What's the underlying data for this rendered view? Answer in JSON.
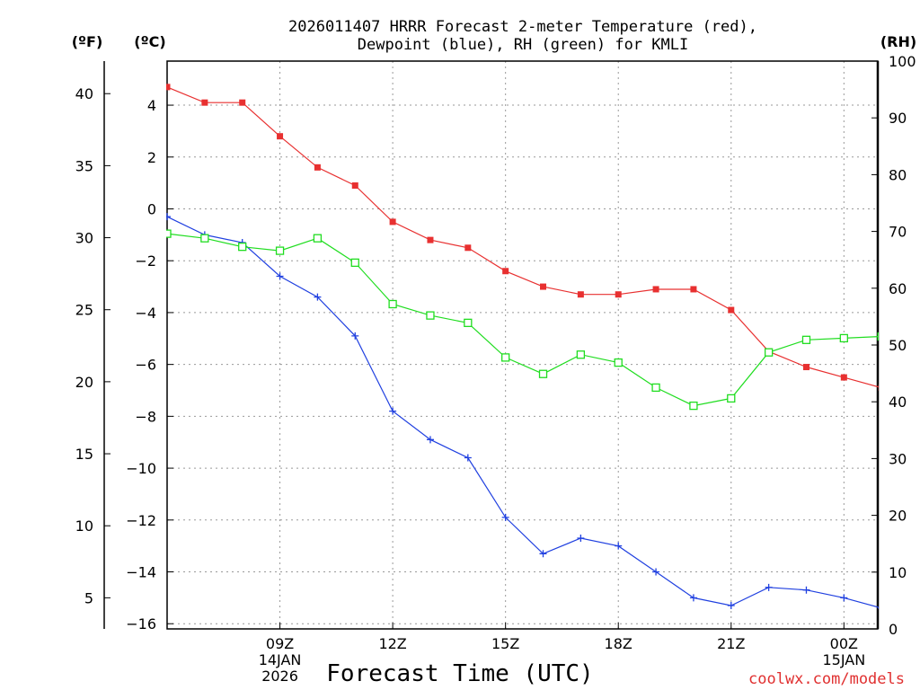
{
  "chart_data": {
    "type": "line",
    "title_lines": [
      "2026011407 HRRR Forecast 2-meter Temperature (red),",
      "Dewpoint (blue), RH (green) for KMLI"
    ],
    "xlabel": "Forecast Time (UTC)",
    "credit": "coolwx.com/models",
    "units": {
      "fahrenheit": "(ºF)",
      "celsius": "(ºC)",
      "rh": "(RH)"
    },
    "x_hours": [
      6,
      7,
      8,
      9,
      10,
      11,
      12,
      13,
      14,
      15,
      16,
      17,
      18,
      19,
      20,
      21,
      22,
      23,
      24,
      25
    ],
    "xlim": [
      6,
      24.9
    ],
    "x_ticks": [
      {
        "hour": 9,
        "lines": [
          "09Z",
          "14JAN",
          "2026"
        ]
      },
      {
        "hour": 12,
        "lines": [
          "12Z"
        ]
      },
      {
        "hour": 15,
        "lines": [
          "15Z"
        ]
      },
      {
        "hour": 18,
        "lines": [
          "18Z"
        ]
      },
      {
        "hour": 21,
        "lines": [
          "21Z"
        ]
      },
      {
        "hour": 24,
        "lines": [
          "00Z",
          "15JAN"
        ]
      }
    ],
    "celsius_axis": {
      "ylim": [
        -16.2,
        5.7
      ],
      "ticks": [
        4,
        2,
        0,
        -2,
        -4,
        -6,
        -8,
        -10,
        -12,
        -14,
        -16
      ],
      "tick_labels": [
        "4",
        "2",
        "0",
        "−2",
        "−4",
        "−6",
        "−8",
        "−10",
        "−12",
        "−14",
        "−16"
      ]
    },
    "fahrenheit_axis": {
      "ticks": [
        40,
        35,
        30,
        25,
        20,
        15,
        10,
        5
      ],
      "tick_labels": [
        "40",
        "35",
        "30",
        "25",
        "20",
        "15",
        "10",
        "5"
      ]
    },
    "rh_axis": {
      "ylim": [
        0,
        100
      ],
      "ticks": [
        100,
        90,
        80,
        70,
        60,
        50,
        40,
        30,
        20,
        10,
        0
      ],
      "tick_labels": [
        "100",
        "90",
        "80",
        "70",
        "60",
        "50",
        "40",
        "30",
        "20",
        "10",
        "0"
      ]
    },
    "series": [
      {
        "name": "2-meter Temperature",
        "axis": "celsius",
        "color": "#e83030",
        "marker": "filled-square",
        "values": [
          4.7,
          4.1,
          4.1,
          2.8,
          1.6,
          0.9,
          -0.5,
          -1.2,
          -1.5,
          -2.4,
          -3.0,
          -3.3,
          -3.3,
          -3.1,
          -3.1,
          -3.9,
          -5.5,
          -6.1,
          -6.5,
          -6.9
        ]
      },
      {
        "name": "Dewpoint",
        "axis": "celsius",
        "color": "#2040e0",
        "marker": "plus",
        "values": [
          -0.3,
          -1.0,
          -1.3,
          -2.6,
          -3.4,
          -4.9,
          -7.8,
          -8.9,
          -9.6,
          -11.9,
          -13.3,
          -12.7,
          -13.0,
          -14.0,
          -15.0,
          -15.3,
          -14.6,
          -14.7,
          -15.0,
          -15.4
        ]
      },
      {
        "name": "RH",
        "axis": "rh",
        "color": "#20dd20",
        "marker": "open-square",
        "values": [
          69.6,
          68.8,
          67.3,
          66.6,
          68.8,
          64.5,
          57.2,
          55.2,
          53.9,
          47.8,
          44.9,
          48.3,
          46.9,
          42.5,
          39.3,
          40.6,
          48.7,
          50.9,
          51.2,
          51.5
        ]
      }
    ]
  }
}
